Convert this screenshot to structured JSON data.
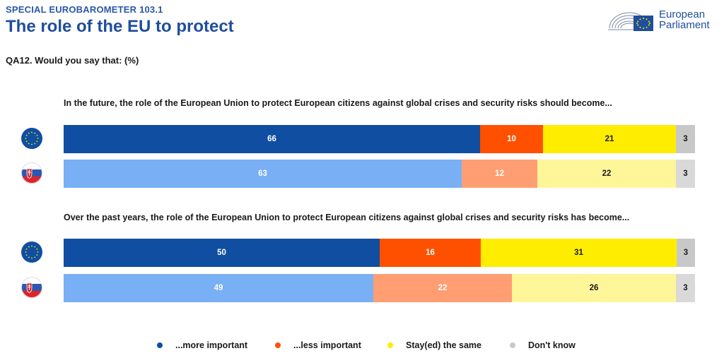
{
  "header": {
    "kicker": "SPECIAL EUROBAROMETER 103.1",
    "title": "The role of the EU to protect",
    "question": "QA12. Would you say that: (%)",
    "logo_line1": "European",
    "logo_line2": "Parliament"
  },
  "colors": {
    "eu_more": "#0f4ea1",
    "eu_less": "#ff5000",
    "eu_same": "#ffed00",
    "eu_dk": "#c8c8c8",
    "sk_more": "#79aff4",
    "sk_less": "#ff9e73",
    "sk_same": "#fff699",
    "sk_dk": "#d9d9d9",
    "legend_more": "#0f4ea1",
    "legend_less": "#ff5000",
    "legend_same": "#ffed00",
    "legend_dk": "#c8c8c8"
  },
  "chart_data": {
    "type": "bar",
    "stacked": true,
    "orientation": "horizontal",
    "legend": [
      "...more important",
      "...less important",
      "Stay(ed) the same",
      "Don't know"
    ],
    "groups": [
      {
        "title": "In the future, the role of the European Union to protect European citizens against global crises and security risks should become...",
        "rows": [
          {
            "flag": "eu-flag-icon",
            "theme": "eu",
            "values": [
              66,
              10,
              21,
              3
            ]
          },
          {
            "flag": "slovakia-flag-icon",
            "theme": "sk",
            "values": [
              63,
              12,
              22,
              3
            ]
          }
        ]
      },
      {
        "title": "Over the past years, the role of the European Union to protect European citizens against global crises and security risks has become...",
        "rows": [
          {
            "flag": "eu-flag-icon",
            "theme": "eu",
            "values": [
              50,
              16,
              31,
              3
            ]
          },
          {
            "flag": "slovakia-flag-icon",
            "theme": "sk",
            "values": [
              49,
              22,
              26,
              3
            ]
          }
        ]
      }
    ]
  }
}
